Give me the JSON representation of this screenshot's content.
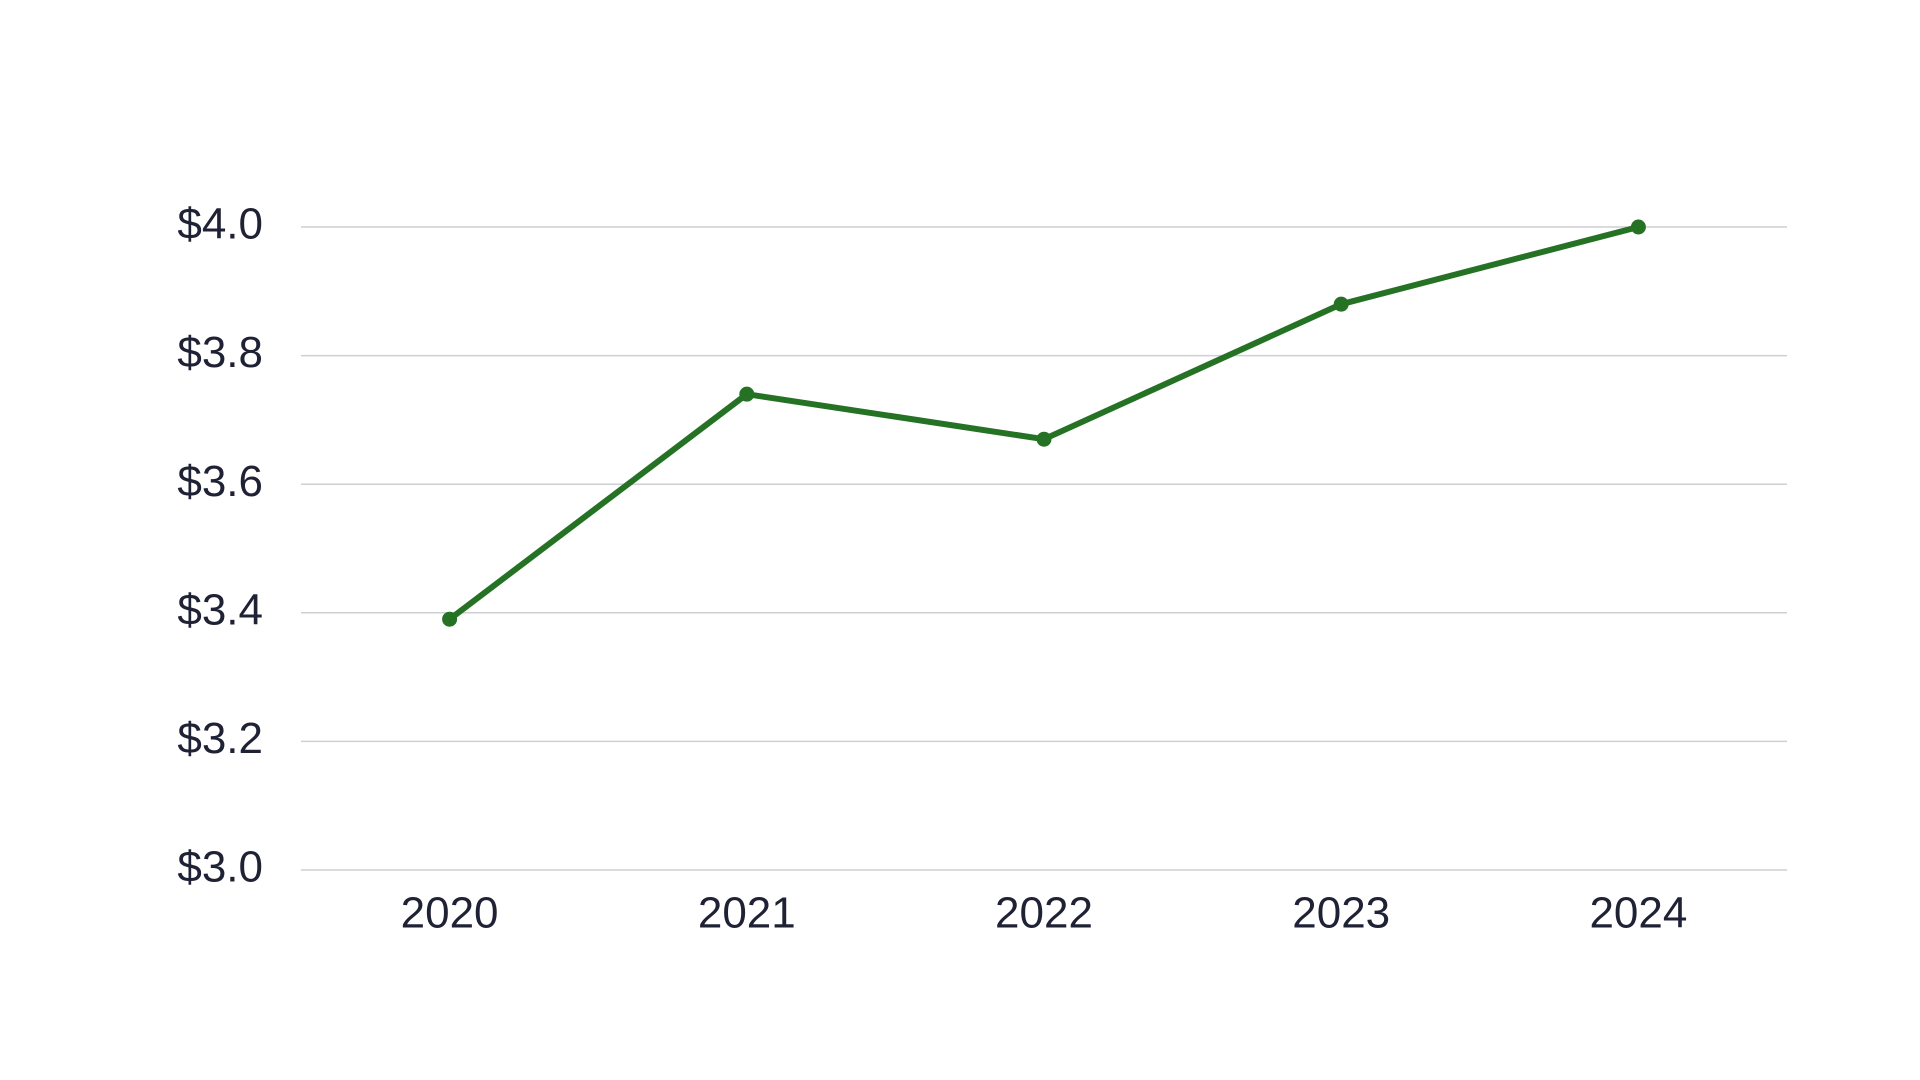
{
  "chart_data": {
    "type": "line",
    "categories": [
      "2020",
      "2021",
      "2022",
      "2023",
      "2024"
    ],
    "values": [
      3.39,
      3.74,
      3.67,
      3.88,
      4.0
    ],
    "color": "#257225",
    "ylim": [
      3.0,
      4.0
    ],
    "yticks": [
      {
        "value": 3.0,
        "label": "$3.0"
      },
      {
        "value": 3.2,
        "label": "$3.2"
      },
      {
        "value": 3.4,
        "label": "$3.4"
      },
      {
        "value": 3.6,
        "label": "$3.6"
      },
      {
        "value": 3.8,
        "label": "$3.8"
      },
      {
        "value": 4.0,
        "label": "$4.0"
      }
    ],
    "grid": true
  }
}
